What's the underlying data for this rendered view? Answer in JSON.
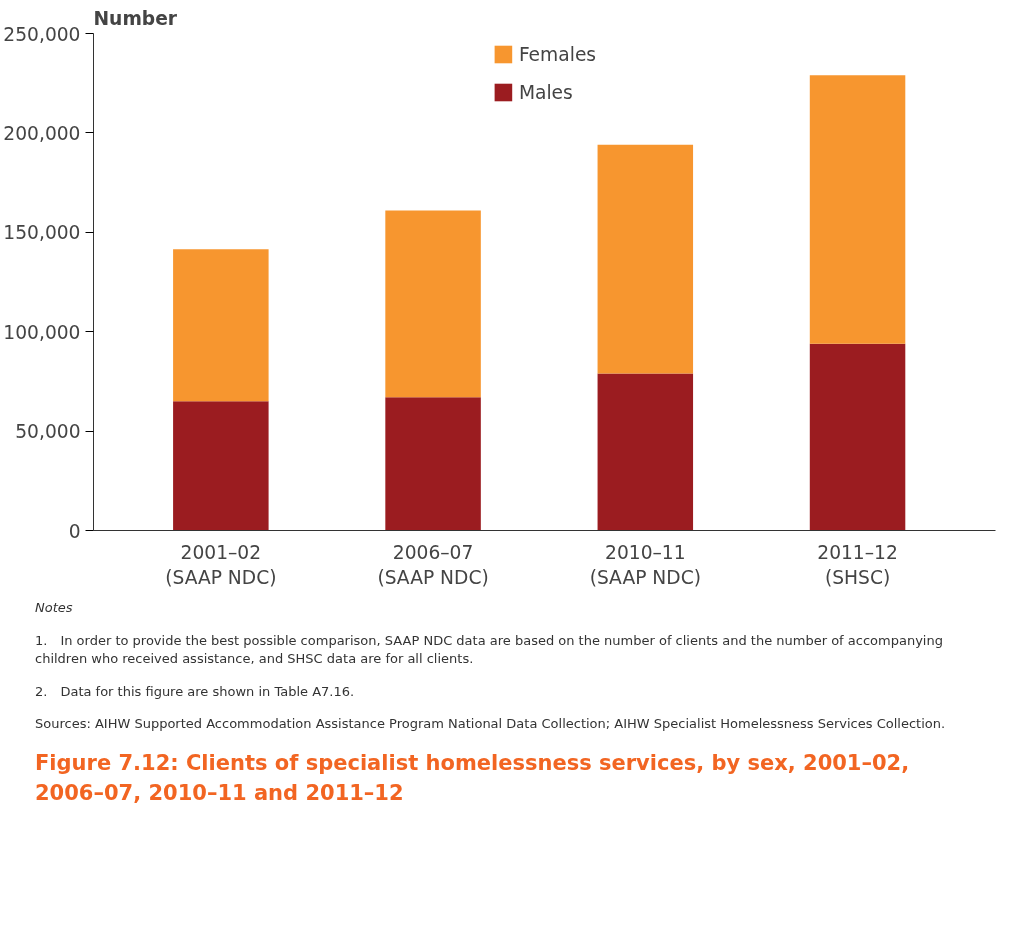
{
  "chart_data": {
    "type": "bar",
    "stacked": true,
    "title": "Figure 7.12: Clients of specialist homelessness services, by sex, 2001–02, 2006–07, 2010–11 and 2011–12",
    "ylabel": "Number",
    "categories": [
      "2001–02\n(SAAP NDC)",
      "2006–07\n(SAAP NDC)",
      "2010–11\n(SAAP NDC)",
      "2011–12\n(SHSC)"
    ],
    "series": [
      {
        "name": "Males",
        "color": "#9b1c20",
        "values": [
          65000,
          67000,
          79000,
          94000
        ]
      },
      {
        "name": "Females",
        "color": "#f7962f",
        "values": [
          76500,
          94000,
          115000,
          135000
        ]
      }
    ],
    "ylim": [
      0,
      250000
    ],
    "yticks": [
      {
        "value": 0,
        "label": "0"
      },
      {
        "value": 50000,
        "label": "50,000"
      },
      {
        "value": 100000,
        "label": "100,000"
      },
      {
        "value": 150000,
        "label": "150,000"
      },
      {
        "value": 200000,
        "label": "200,000"
      },
      {
        "value": 250000,
        "label": "250,000"
      }
    ],
    "grid": false,
    "legend": "top",
    "annotations": [
      "Notes",
      "1. In order to provide the best possible comparison, SAAP NDC data are based on the number of clients and the number of accompanying children who received assistance, and SHSC data are for all clients.",
      "2. Data for this figure are shown in Table A7.16.",
      "Sources: AIHW Supported Accommodation Assistance Program National Data Collection; AIHW Specialist Homelessness Services Collection."
    ]
  }
}
